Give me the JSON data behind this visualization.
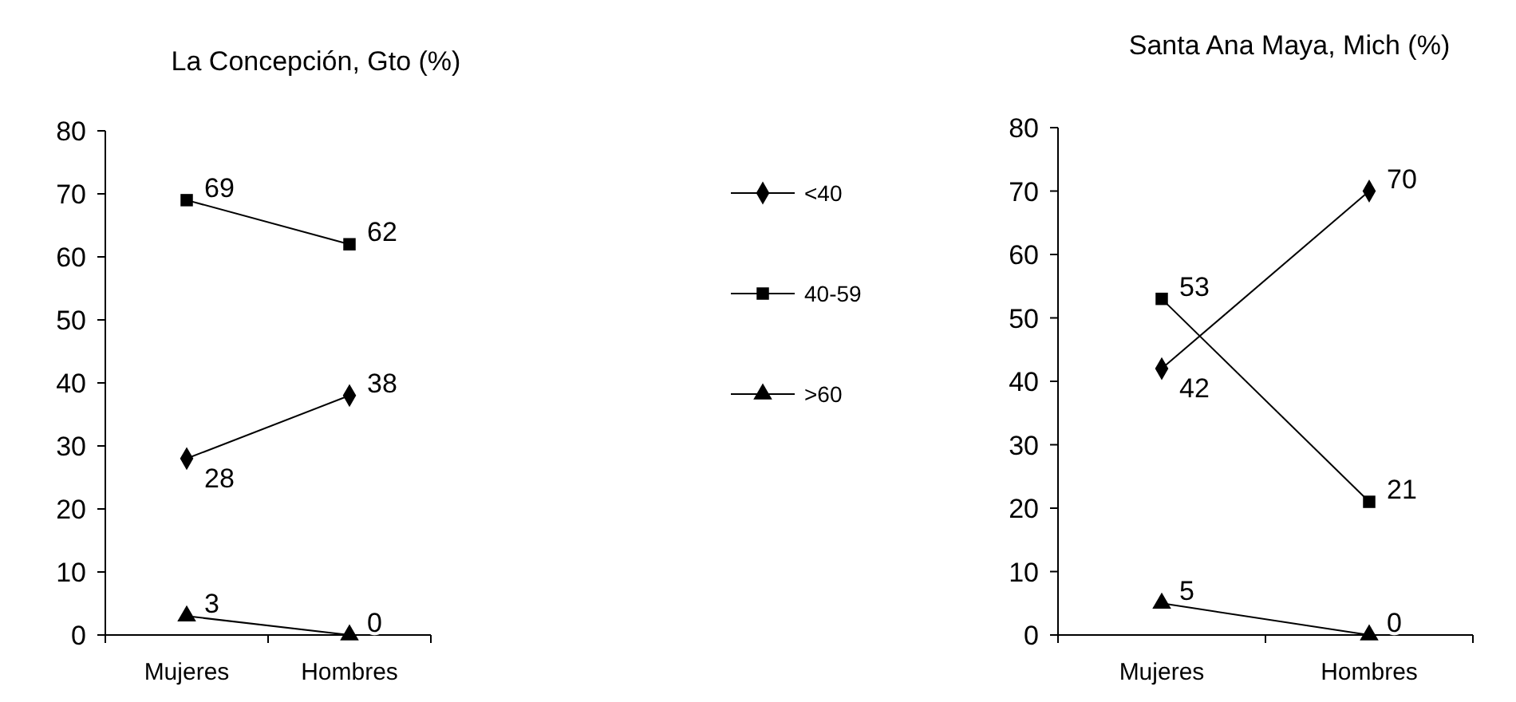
{
  "chart_data": [
    {
      "type": "line",
      "title": "La Concepción, Gto (%)",
      "categories": [
        "Mujeres",
        "Hombres"
      ],
      "ylim": [
        0,
        80
      ],
      "yticks": [
        0,
        10,
        20,
        30,
        40,
        50,
        60,
        70,
        80
      ],
      "data_labels": true,
      "legend": "right",
      "grid": false,
      "series": [
        {
          "name": "<40",
          "color": "#000000",
          "marker": "diamond",
          "values": [
            28,
            38
          ]
        },
        {
          "name": "40-59",
          "color": "#000000",
          "marker": "square",
          "values": [
            69,
            62
          ]
        },
        {
          "name": ">60",
          "color": "#000000",
          "marker": "triangle",
          "values": [
            3,
            0
          ]
        }
      ]
    },
    {
      "type": "line",
      "title": "Santa Ana Maya, Mich (%)",
      "categories": [
        "Mujeres",
        "Hombres"
      ],
      "ylim": [
        0,
        80
      ],
      "yticks": [
        0,
        10,
        20,
        30,
        40,
        50,
        60,
        70,
        80
      ],
      "data_labels": true,
      "legend": false,
      "grid": false,
      "series": [
        {
          "color": "#000000",
          "marker": "diamond",
          "values": [
            42,
            70
          ]
        },
        {
          "color": "#000000",
          "marker": "square",
          "values": [
            53,
            21
          ]
        },
        {
          "color": "#000000",
          "marker": "triangle",
          "values": [
            5,
            0
          ]
        }
      ]
    }
  ]
}
